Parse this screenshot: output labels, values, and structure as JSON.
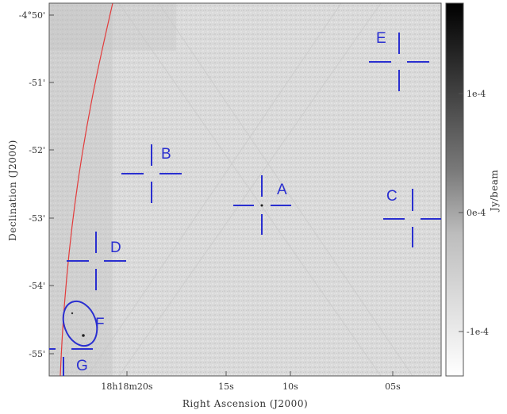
{
  "axes": {
    "xlabel": "Right Ascension  (J2000)",
    "ylabel": "Declination  (J2000)",
    "x_ticks": [
      {
        "label": "18h18m20s"
      },
      {
        "label": "15s"
      },
      {
        "label": "10s"
      },
      {
        "label": "05s"
      }
    ],
    "y_ticks": [
      {
        "label": "-4°50'"
      },
      {
        "label": "-51'"
      },
      {
        "label": "-52'"
      },
      {
        "label": "-53'"
      },
      {
        "label": "-54'"
      },
      {
        "label": "-55'"
      }
    ]
  },
  "colorbar": {
    "label": "Jy/beam",
    "ticks": [
      "1e-4",
      "0e-4",
      "-1e-4"
    ]
  },
  "markers": [
    {
      "id": "A",
      "label": "A",
      "shape": "cross"
    },
    {
      "id": "B",
      "label": "B",
      "shape": "cross"
    },
    {
      "id": "C",
      "label": "C",
      "shape": "cross"
    },
    {
      "id": "D",
      "label": "D",
      "shape": "cross"
    },
    {
      "id": "E",
      "label": "E",
      "shape": "cross"
    },
    {
      "id": "F",
      "label": "F",
      "shape": "ellipse"
    },
    {
      "id": "G",
      "label": "G",
      "shape": "cross"
    }
  ],
  "colors": {
    "marker": "#2a2fd0",
    "boundary_curve": "#e23b3b",
    "background_noise": "#d9d9d9"
  }
}
